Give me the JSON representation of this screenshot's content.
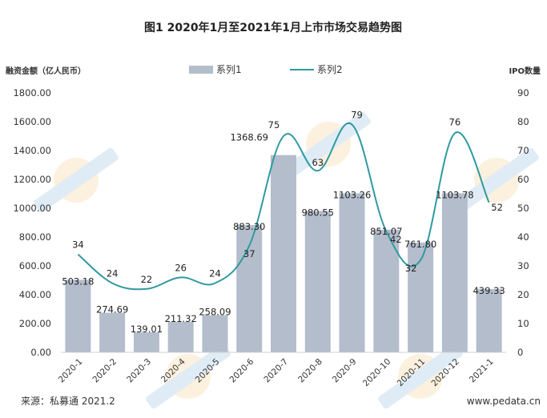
{
  "chart_data": {
    "type": "bar",
    "title": "图1 2020年1月至2021年1月上市市场交易趋势图",
    "ylabel_left": "融资金额（亿人民币）",
    "ylabel_right": "IPO数量",
    "categories": [
      "2020-1",
      "2020-2",
      "2020-3",
      "2020-4",
      "2020-5",
      "2020-6",
      "2020-7",
      "2020-8",
      "2020-9",
      "2020-10",
      "2020-11",
      "2020-12",
      "2021-1"
    ],
    "y_left_ticks": [
      "0.00",
      "200.00",
      "400.00",
      "600.00",
      "800.00",
      "1000.00",
      "1200.00",
      "1400.00",
      "1600.00",
      "1800.00"
    ],
    "y_right_ticks": [
      "0",
      "10",
      "20",
      "30",
      "40",
      "50",
      "60",
      "70",
      "80",
      "90"
    ],
    "ylim_left": [
      0,
      1800
    ],
    "ylim_right": [
      0,
      90
    ],
    "series": [
      {
        "name": "系列1",
        "type": "bar",
        "axis": "left",
        "color": "#b4bdcc",
        "values": [
          503.18,
          274.69,
          139.01,
          211.32,
          258.09,
          883.3,
          1368.69,
          980.55,
          1103.26,
          851.07,
          761.8,
          1103.78,
          439.33
        ],
        "labels": [
          "503.18",
          "274.69",
          "139.01",
          "211.32",
          "258.09",
          "883.30",
          "1368.69",
          "980.55",
          "1103.26",
          "851.07",
          "761.80",
          "1103.78",
          "439.33"
        ]
      },
      {
        "name": "系列2",
        "type": "line",
        "axis": "right",
        "color": "#2f9aa0",
        "smooth": true,
        "values": [
          34,
          24,
          22,
          26,
          24,
          37,
          75,
          63,
          79,
          42,
          32,
          76,
          52
        ],
        "labels": [
          "34",
          "24",
          "22",
          "26",
          "24",
          "37",
          "75",
          "63",
          "79",
          "42",
          "32",
          "76",
          "52"
        ]
      }
    ],
    "legend_position": "top-center",
    "grid": false
  },
  "footer": {
    "source": "来源：私募通 2021.2",
    "site": "www.pedata.cn"
  }
}
